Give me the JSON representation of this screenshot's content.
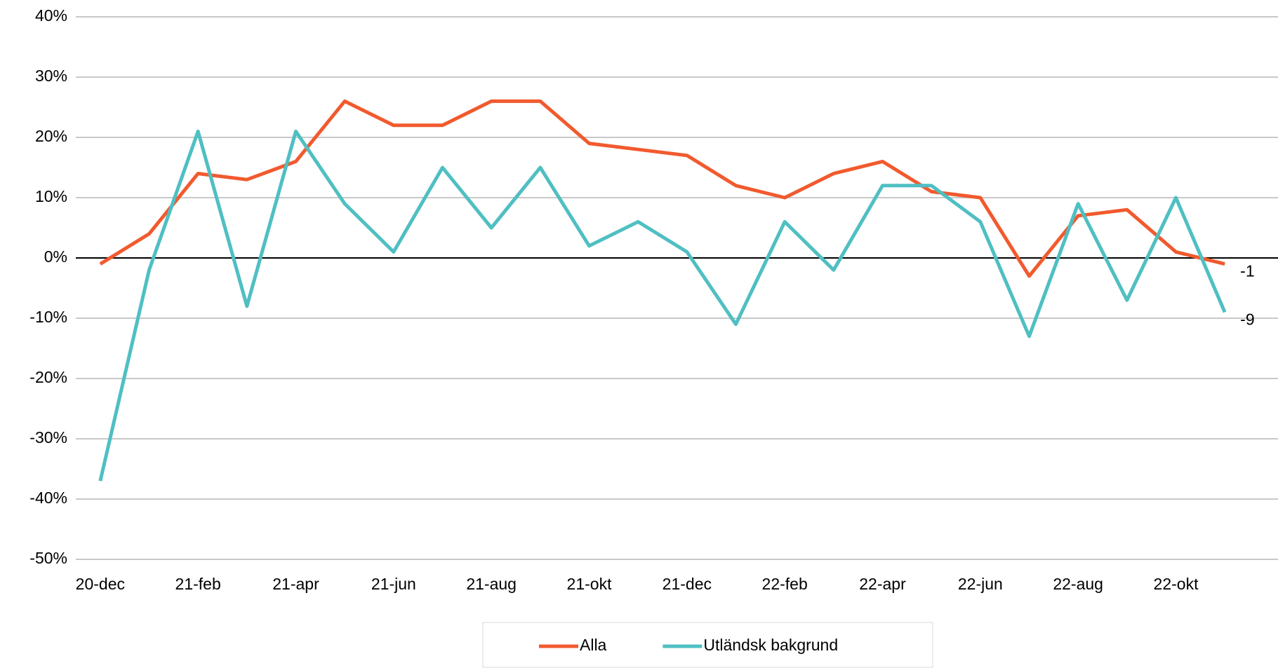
{
  "chart_data": {
    "type": "line",
    "categories": [
      "20-dec",
      null,
      "21-feb",
      null,
      "21-apr",
      null,
      "21-jun",
      null,
      "21-aug",
      null,
      "21-okt",
      null,
      "21-dec",
      null,
      "22-feb",
      null,
      "22-apr",
      null,
      "22-jun",
      null,
      "22-aug",
      null,
      "22-okt",
      null
    ],
    "series": [
      {
        "name": "Alla",
        "color": "#f15a2e",
        "values": [
          -1,
          4,
          14,
          13,
          16,
          26,
          22,
          22,
          26,
          26,
          19,
          18,
          17,
          12,
          10,
          14,
          16,
          11,
          10,
          -3,
          7,
          8,
          1,
          -1
        ]
      },
      {
        "name": "Utländsk bakgrund",
        "color": "#4fbfc2",
        "values": [
          -37,
          -2,
          21,
          -8,
          21,
          9,
          1,
          15,
          5,
          15,
          2,
          6,
          1,
          -11,
          6,
          -2,
          12,
          12,
          6,
          -13,
          9,
          -7,
          10,
          -9
        ]
      }
    ],
    "ylim": [
      -50,
      40
    ],
    "yticks": [
      {
        "value": -50,
        "label": "-50%"
      },
      {
        "value": -40,
        "label": "-40%"
      },
      {
        "value": -30,
        "label": "-30%"
      },
      {
        "value": -20,
        "label": "-20%"
      },
      {
        "value": -10,
        "label": "-10%"
      },
      {
        "value": 0,
        "label": "0%"
      },
      {
        "value": 10,
        "label": "10%"
      },
      {
        "value": 20,
        "label": "20%"
      },
      {
        "value": 30,
        "label": "30%"
      },
      {
        "value": 40,
        "label": "40%"
      }
    ],
    "grid": true,
    "legend": "bottom"
  }
}
